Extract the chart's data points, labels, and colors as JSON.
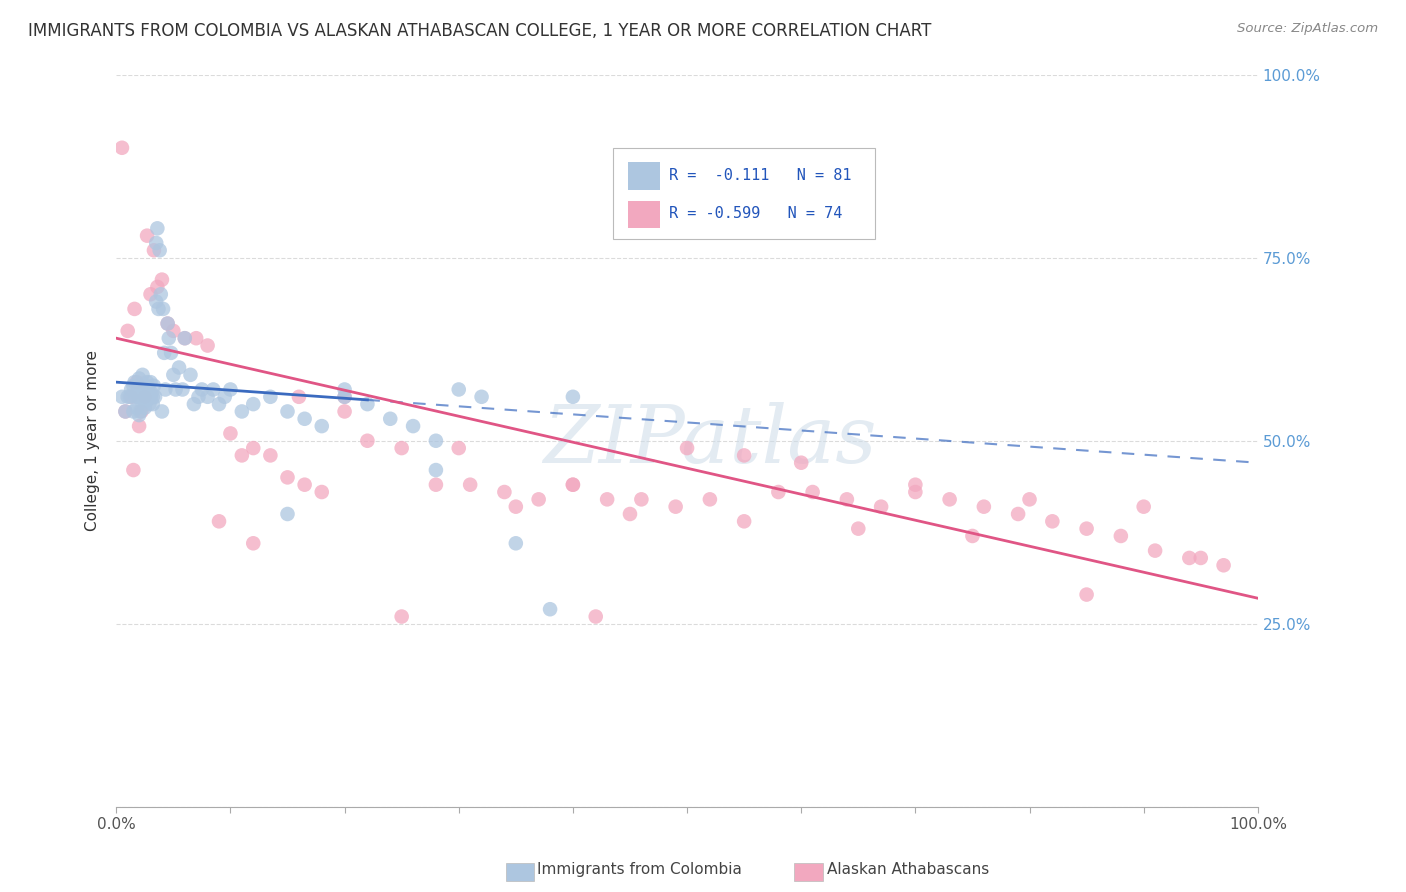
{
  "title": "IMMIGRANTS FROM COLOMBIA VS ALASKAN ATHABASCAN COLLEGE, 1 YEAR OR MORE CORRELATION CHART",
  "source": "Source: ZipAtlas.com",
  "ylabel": "College, 1 year or more",
  "blue_color": "#adc6e0",
  "pink_color": "#f2a8bf",
  "blue_line_color": "#3a6abf",
  "pink_line_color": "#e05585",
  "watermark": "ZIPatlas",
  "blue_scatter_x": [
    0.005,
    0.008,
    0.01,
    0.012,
    0.013,
    0.015,
    0.015,
    0.016,
    0.017,
    0.018,
    0.019,
    0.02,
    0.02,
    0.02,
    0.021,
    0.022,
    0.022,
    0.023,
    0.024,
    0.024,
    0.025,
    0.025,
    0.026,
    0.027,
    0.027,
    0.028,
    0.028,
    0.029,
    0.03,
    0.03,
    0.031,
    0.032,
    0.032,
    0.033,
    0.034,
    0.035,
    0.035,
    0.036,
    0.037,
    0.038,
    0.039,
    0.04,
    0.041,
    0.042,
    0.043,
    0.045,
    0.046,
    0.048,
    0.05,
    0.052,
    0.055,
    0.058,
    0.06,
    0.065,
    0.068,
    0.072,
    0.075,
    0.08,
    0.085,
    0.09,
    0.095,
    0.1,
    0.11,
    0.12,
    0.135,
    0.15,
    0.165,
    0.18,
    0.2,
    0.22,
    0.24,
    0.26,
    0.28,
    0.3,
    0.32,
    0.35,
    0.38,
    0.4,
    0.28,
    0.15,
    0.2
  ],
  "blue_scatter_y": [
    0.56,
    0.54,
    0.56,
    0.56,
    0.57,
    0.54,
    0.575,
    0.58,
    0.56,
    0.545,
    0.57,
    0.535,
    0.56,
    0.585,
    0.54,
    0.565,
    0.555,
    0.59,
    0.57,
    0.56,
    0.545,
    0.56,
    0.575,
    0.58,
    0.555,
    0.57,
    0.56,
    0.55,
    0.58,
    0.56,
    0.565,
    0.55,
    0.56,
    0.575,
    0.56,
    0.77,
    0.69,
    0.79,
    0.68,
    0.76,
    0.7,
    0.54,
    0.68,
    0.62,
    0.57,
    0.66,
    0.64,
    0.62,
    0.59,
    0.57,
    0.6,
    0.57,
    0.64,
    0.59,
    0.55,
    0.56,
    0.57,
    0.56,
    0.57,
    0.55,
    0.56,
    0.57,
    0.54,
    0.55,
    0.56,
    0.54,
    0.53,
    0.52,
    0.56,
    0.55,
    0.53,
    0.52,
    0.5,
    0.57,
    0.56,
    0.36,
    0.27,
    0.56,
    0.46,
    0.4,
    0.57
  ],
  "pink_scatter_x": [
    0.005,
    0.008,
    0.01,
    0.013,
    0.015,
    0.016,
    0.018,
    0.02,
    0.022,
    0.025,
    0.027,
    0.03,
    0.033,
    0.036,
    0.04,
    0.045,
    0.05,
    0.06,
    0.07,
    0.08,
    0.09,
    0.1,
    0.11,
    0.12,
    0.135,
    0.15,
    0.165,
    0.18,
    0.2,
    0.22,
    0.25,
    0.28,
    0.31,
    0.34,
    0.37,
    0.4,
    0.43,
    0.46,
    0.49,
    0.52,
    0.55,
    0.58,
    0.61,
    0.64,
    0.67,
    0.7,
    0.73,
    0.76,
    0.79,
    0.82,
    0.85,
    0.88,
    0.91,
    0.94,
    0.97,
    0.3,
    0.4,
    0.5,
    0.6,
    0.7,
    0.8,
    0.9,
    0.2,
    0.35,
    0.45,
    0.55,
    0.65,
    0.75,
    0.85,
    0.95,
    0.12,
    0.16,
    0.25,
    0.42
  ],
  "pink_scatter_y": [
    0.9,
    0.54,
    0.65,
    0.56,
    0.46,
    0.68,
    0.58,
    0.52,
    0.54,
    0.56,
    0.78,
    0.7,
    0.76,
    0.71,
    0.72,
    0.66,
    0.65,
    0.64,
    0.64,
    0.63,
    0.39,
    0.51,
    0.48,
    0.49,
    0.48,
    0.45,
    0.44,
    0.43,
    0.56,
    0.5,
    0.49,
    0.44,
    0.44,
    0.43,
    0.42,
    0.44,
    0.42,
    0.42,
    0.41,
    0.42,
    0.48,
    0.43,
    0.43,
    0.42,
    0.41,
    0.44,
    0.42,
    0.41,
    0.4,
    0.39,
    0.38,
    0.37,
    0.35,
    0.34,
    0.33,
    0.49,
    0.44,
    0.49,
    0.47,
    0.43,
    0.42,
    0.41,
    0.54,
    0.41,
    0.4,
    0.39,
    0.38,
    0.37,
    0.29,
    0.34,
    0.36,
    0.56,
    0.26,
    0.26
  ],
  "blue_trend_x": [
    0.0,
    1.0
  ],
  "blue_trend_y": [
    0.58,
    0.47
  ],
  "pink_trend_x": [
    0.0,
    1.0
  ],
  "pink_trend_y": [
    0.64,
    0.285
  ],
  "xlim": [
    0.0,
    1.0
  ],
  "ylim": [
    0.0,
    1.0
  ],
  "xticks": [
    0.0,
    0.1,
    0.2,
    0.3,
    0.4,
    0.5,
    0.6,
    0.7,
    0.8,
    0.9,
    1.0
  ],
  "yticks": [
    0.0,
    0.25,
    0.5,
    0.75,
    1.0
  ],
  "right_ytick_labels": [
    "25.0%",
    "50.0%",
    "75.0%",
    "100.0%"
  ],
  "right_ytick_values": [
    0.25,
    0.5,
    0.75,
    1.0
  ],
  "background_color": "#ffffff",
  "grid_color": "#d8d8d8"
}
